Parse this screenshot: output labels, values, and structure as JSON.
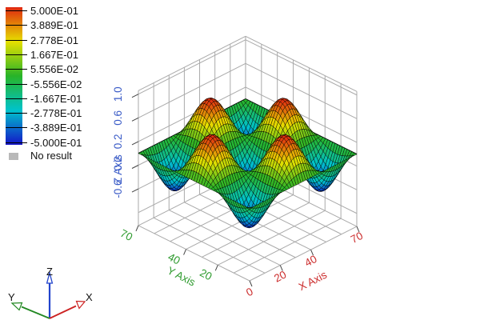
{
  "window": {
    "background": "#ffffff"
  },
  "legend": {
    "labels": [
      "5.000E-01",
      "3.889E-01",
      "2.778E-01",
      "1.667E-01",
      "5.556E-02",
      "-5.556E-02",
      "-1.667E-01",
      "-2.778E-01",
      "-3.889E-01",
      "-5.000E-01"
    ],
    "no_result_label": "No result",
    "no_result_color": "#b9b9b9"
  },
  "axes": {
    "x": {
      "title": "X Axis",
      "color": "#cc2e2e",
      "ticks": [
        "0",
        "20",
        "40",
        "70"
      ],
      "tick_values": [
        0,
        20,
        40,
        70
      ]
    },
    "y": {
      "title": "Y Axis",
      "color": "#2e9b2e",
      "ticks": [
        "20",
        "40",
        "70"
      ],
      "tick_values": [
        20,
        40,
        70
      ]
    },
    "z": {
      "title": "Z Axis",
      "color": "#3a5bc7",
      "ticks": [
        "1.0",
        "0.6",
        "0.2",
        "-0.2",
        "-0.6"
      ],
      "tick_values": [
        1.0,
        0.6,
        0.2,
        -0.2,
        -0.6
      ]
    }
  },
  "triad": {
    "x": "X",
    "y": "Y",
    "z": "Z",
    "x_color": "#cc2222",
    "y_color": "#228822",
    "z_color": "#2244cc"
  },
  "chart_data": {
    "type": "surface",
    "title": "",
    "function": "z(x,y) = -0.5 * sin(3*pi*x/70) * sin(3*pi*y/70)",
    "x_domain": [
      0,
      70
    ],
    "y_domain": [
      0,
      70
    ],
    "z_value_range": [
      -0.5,
      0.5
    ],
    "z_axis_range": [
      -1.22,
      1.06
    ],
    "height_amplitude": 0.62,
    "grid_step_xy": 10,
    "wall_grid_z_lines": [
      -1.0,
      -0.6,
      -0.2,
      0.2,
      0.6,
      1.0
    ],
    "mesh_resolution": 46,
    "grid_color": "#aaaaaa",
    "boundary_line_color": "#000000",
    "colormap_stops": [
      [
        "0.00",
        "#1414c8"
      ],
      [
        "0.25",
        "#00c3cc"
      ],
      [
        "0.50",
        "#28b428"
      ],
      [
        "0.75",
        "#e6e000"
      ],
      [
        "1.00",
        "#e02810"
      ]
    ],
    "legend_values": [
      0.5,
      0.3889,
      0.2778,
      0.1667,
      0.05556,
      -0.05556,
      -0.1667,
      -0.2778,
      -0.3889,
      -0.5
    ]
  }
}
